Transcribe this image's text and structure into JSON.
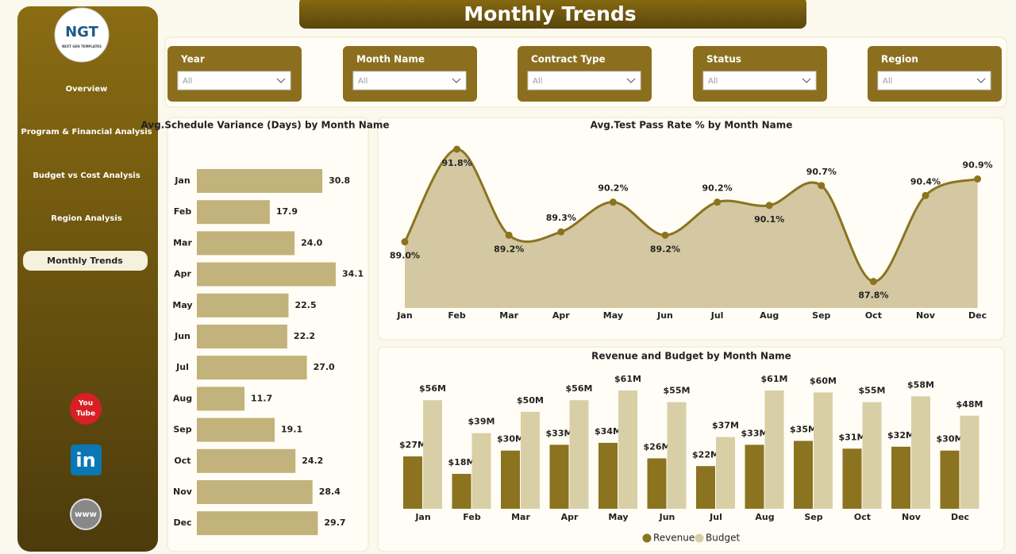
{
  "header": {
    "title": "Monthly Trends"
  },
  "sidebar": {
    "logo": "NGT",
    "logo_sub": "NEXT GEN TEMPLATES",
    "nav": [
      "Overview",
      "Program & Financial Analysis",
      "Budget vs Cost Analysis",
      "Region Analysis",
      "Monthly Trends"
    ],
    "icons": [
      "You",
      "Tube",
      "in",
      "www"
    ]
  },
  "filters": [
    {
      "label": "Year",
      "value": "All"
    },
    {
      "label": "Month Name",
      "value": "All"
    },
    {
      "label": "Contract Type",
      "value": "All"
    },
    {
      "label": "Status",
      "value": "All"
    },
    {
      "label": "Region",
      "value": "All"
    }
  ],
  "chart_data": [
    {
      "type": "hbar",
      "title": "Avg.Schedule Variance (Days) by Month Name",
      "categories": [
        "Jan",
        "Feb",
        "Mar",
        "Apr",
        "May",
        "Jun",
        "Jul",
        "Aug",
        "Sep",
        "Oct",
        "Nov",
        "Dec"
      ],
      "values": [
        30.8,
        17.9,
        24.0,
        34.1,
        22.5,
        22.2,
        27.0,
        11.7,
        19.1,
        24.2,
        28.4,
        29.7
      ],
      "value_labels": [
        "30.8",
        "17.9",
        "24.0",
        "34.1",
        "22.5",
        "22.2",
        "27.0",
        "11.7",
        "19.1",
        "24.2",
        "28.4",
        "29.7"
      ],
      "color": "#c2b27b"
    },
    {
      "type": "area",
      "title": "Avg.Test Pass Rate % by Month Name",
      "categories": [
        "Jan",
        "Feb",
        "Mar",
        "Apr",
        "May",
        "Jun",
        "Jul",
        "Aug",
        "Sep",
        "Oct",
        "Nov",
        "Dec"
      ],
      "values": [
        89.0,
        91.8,
        89.2,
        89.3,
        90.2,
        89.2,
        90.2,
        90.1,
        90.7,
        87.8,
        90.4,
        90.9
      ],
      "value_labels": [
        "89.0%",
        "91.8%",
        "89.2%",
        "89.3%",
        "90.2%",
        "89.2%",
        "90.2%",
        "90.1%",
        "90.7%",
        "87.8%",
        "90.4%",
        "90.9%"
      ],
      "color": "#8b7320"
    },
    {
      "type": "grouped-bar",
      "title": "Revenue and Budget by Month Name",
      "categories": [
        "Jan",
        "Feb",
        "Mar",
        "Apr",
        "May",
        "Jun",
        "Jul",
        "Aug",
        "Sep",
        "Oct",
        "Nov",
        "Dec"
      ],
      "series": [
        {
          "name": "Revenue",
          "color": "#8b7320",
          "values": [
            27,
            18,
            30,
            33,
            34,
            26,
            22,
            33,
            35,
            31,
            32,
            30
          ],
          "value_labels": [
            "$27M",
            "$18M",
            "$30M",
            "$33M",
            "$34M",
            "$26M",
            "$22M",
            "$33M",
            "$35M",
            "$31M",
            "$32M",
            "$30M"
          ]
        },
        {
          "name": "Budget",
          "color": "#d9cfa6",
          "values": [
            56,
            39,
            50,
            56,
            61,
            55,
            37,
            61,
            60,
            55,
            58,
            48
          ],
          "value_labels": [
            "$56M",
            "$39M",
            "$50M",
            "$56M",
            "$61M",
            "$55M",
            "$37M",
            "$61M",
            "$60M",
            "$55M",
            "$58M",
            "$48M"
          ]
        }
      ]
    }
  ]
}
